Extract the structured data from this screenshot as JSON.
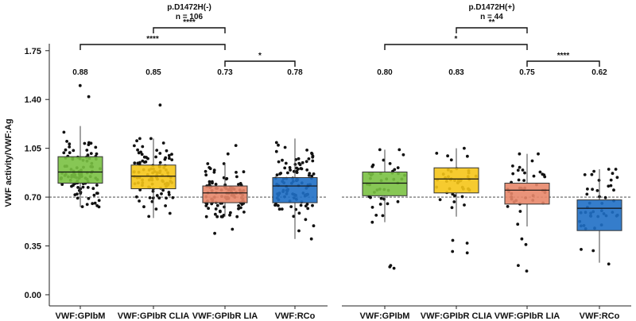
{
  "chart_data": {
    "type": "boxplot",
    "ylabel": "VWF activity/VWF:Ag",
    "ylim": [
      -0.08,
      1.8
    ],
    "yticks": [
      0.0,
      0.35,
      0.7,
      1.05,
      1.4,
      1.75
    ],
    "ytick_labels": [
      "0.00",
      "0.35",
      "0.70",
      "1.05",
      "1.40",
      "1.75"
    ],
    "reference_line": 0.7,
    "panels": [
      {
        "title": "p.D1472H(-)",
        "n_label": "n = 106",
        "boxes": [
          {
            "category": "VWF:GPIbM",
            "color": "#7ac143",
            "whisker_low": 0.63,
            "q1": 0.8,
            "median": 0.88,
            "q3": 0.99,
            "whisker_high": 1.21,
            "median_label": "0.88",
            "n_points": 106,
            "outliers": [
              1.42,
              1.5
            ]
          },
          {
            "category": "VWF:GPIbR CLIA",
            "color": "#f5c518",
            "whisker_low": 0.55,
            "q1": 0.76,
            "median": 0.85,
            "q3": 0.93,
            "whisker_high": 1.12,
            "median_label": "0.85",
            "n_points": 106,
            "outliers": [
              1.36
            ]
          },
          {
            "category": "VWF:GPIbR LIA",
            "color": "#e8876a",
            "whisker_low": 0.56,
            "q1": 0.66,
            "median": 0.73,
            "q3": 0.78,
            "whisker_high": 0.94,
            "median_label": "0.73",
            "n_points": 106,
            "outliers": [
              1.07,
              1.01,
              0.44,
              0.47
            ]
          },
          {
            "category": "VWF:RCo",
            "color": "#1f6fc5",
            "whisker_low": 0.4,
            "q1": 0.66,
            "median": 0.78,
            "q3": 0.84,
            "whisker_high": 1.12,
            "median_label": "0.78",
            "n_points": 106,
            "outliers": []
          }
        ],
        "significance": [
          {
            "from": 1,
            "to": 2,
            "label": "****",
            "level": "top"
          },
          {
            "from": 0,
            "to": 2,
            "label": "****",
            "level": "mid"
          },
          {
            "from": 2,
            "to": 3,
            "label": "*",
            "level": "low"
          }
        ]
      },
      {
        "title": "p.D1472H(+)",
        "n_label": "n = 44",
        "boxes": [
          {
            "category": "VWF:GPIbM",
            "color": "#7ac143",
            "whisker_low": 0.52,
            "q1": 0.71,
            "median": 0.8,
            "q3": 0.88,
            "whisker_high": 1.04,
            "median_label": "0.80",
            "n_points": 44,
            "outliers": [
              0.19,
              0.2,
              0.21
            ]
          },
          {
            "category": "VWF:GPIbR CLIA",
            "color": "#f5c518",
            "whisker_low": 0.56,
            "q1": 0.73,
            "median": 0.83,
            "q3": 0.91,
            "whisker_high": 1.05,
            "median_label": "0.83",
            "n_points": 44,
            "outliers": [
              0.3,
              0.31,
              0.37,
              0.39
            ]
          },
          {
            "category": "VWF:GPIbR LIA",
            "color": "#e8876a",
            "whisker_low": 0.49,
            "q1": 0.65,
            "median": 0.75,
            "q3": 0.8,
            "whisker_high": 1.01,
            "median_label": "0.75",
            "n_points": 44,
            "outliers": [
              0.17,
              0.21,
              0.36,
              0.4
            ]
          },
          {
            "category": "VWF:RCo",
            "color": "#1f6fc5",
            "whisker_low": 0.23,
            "q1": 0.46,
            "median": 0.62,
            "q3": 0.68,
            "whisker_high": 0.9,
            "median_label": "0.62",
            "n_points": 44,
            "outliers": [
              0.22
            ]
          }
        ],
        "significance": [
          {
            "from": 1,
            "to": 2,
            "label": "**",
            "level": "top"
          },
          {
            "from": 0,
            "to": 2,
            "label": "*",
            "level": "mid"
          },
          {
            "from": 2,
            "to": 3,
            "label": "****",
            "level": "low"
          }
        ]
      }
    ]
  }
}
